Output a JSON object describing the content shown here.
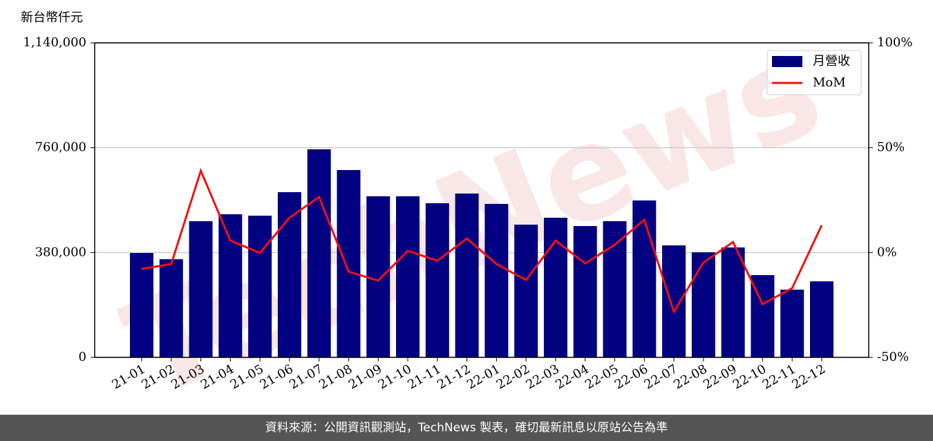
{
  "chart_data": {
    "type": "bar-line",
    "y_label": "新台幣仟元",
    "watermark": "TechNews",
    "footer": "資料來源：公開資訊觀測站，TechNews 製表，確切最新訊息以原站公告為準",
    "categories": [
      "21-01",
      "21-02",
      "21-03",
      "21-04",
      "21-05",
      "21-06",
      "21-07",
      "21-08",
      "21-09",
      "21-10",
      "21-11",
      "21-12",
      "22-01",
      "22-02",
      "22-03",
      "22-04",
      "22-05",
      "22-06",
      "22-07",
      "22-08",
      "22-09",
      "22-10",
      "22-11",
      "22-12"
    ],
    "series": [
      {
        "name": "月營收",
        "type": "bar",
        "color": "#000080",
        "values": [
          378300,
          355800,
          493500,
          518600,
          513600,
          598800,
          754200,
          679000,
          583800,
          583800,
          558700,
          593800,
          556200,
          481000,
          506100,
          476000,
          493500,
          568700,
          405900,
          380800,
          398400,
          298200,
          245500,
          275600
        ]
      },
      {
        "name": "MoM",
        "type": "line",
        "color": "#ee1111",
        "axis": "y2",
        "values": [
          -7.8,
          -5.5,
          39.0,
          5.7,
          -0.2,
          16.6,
          26.5,
          -9.1,
          -13.4,
          0.8,
          -3.9,
          6.7,
          -5.5,
          -13.1,
          5.7,
          -5.2,
          3.7,
          15.6,
          -28.3,
          -4.8,
          5.0,
          -24.6,
          -17.0,
          13.0
        ]
      }
    ],
    "ylim": [
      0,
      1140000
    ],
    "yticks": [
      0,
      {
        "value": 380000,
        "label": "380,000"
      },
      {
        "value": 760000,
        "label": "760,000"
      },
      {
        "value": 1140000,
        "label": "1,140,000"
      }
    ],
    "y2lim": [
      -50,
      100
    ],
    "y2ticks": [
      {
        "value": -50,
        "label": "-50%"
      },
      {
        "value": 0,
        "label": "0%"
      },
      {
        "value": 50,
        "label": "50%"
      },
      {
        "value": 100,
        "label": "100%"
      }
    ],
    "grid": true,
    "legend": "upper right"
  }
}
